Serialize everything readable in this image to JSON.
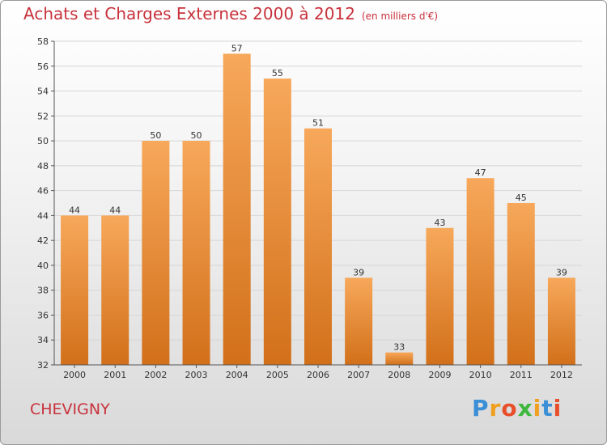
{
  "header": {
    "title": "Achats et Charges Externes 2000 à 2012",
    "unit": "(en milliers d'€)"
  },
  "footer": {
    "commune": "CHEVIGNY",
    "logo": [
      "P",
      "r",
      "o",
      "x",
      "i",
      "t",
      "i"
    ],
    "logo_colors": [
      "#3a8fd6",
      "#f0a020",
      "#e84e2a",
      "#3db83d",
      "#f0a020",
      "#3a8fd6",
      "#e84e2a"
    ]
  },
  "chart_data": {
    "type": "bar",
    "title": "Achats et Charges Externes 2000 à 2012",
    "xlabel": "",
    "ylabel": "",
    "categories": [
      "2000",
      "2001",
      "2002",
      "2003",
      "2004",
      "2005",
      "2006",
      "2007",
      "2008",
      "2009",
      "2010",
      "2011",
      "2012"
    ],
    "values": [
      44,
      44,
      50,
      50,
      57,
      55,
      51,
      39,
      33,
      43,
      47,
      45,
      39
    ],
    "ylim": [
      32,
      58
    ],
    "yticks": [
      32,
      34,
      36,
      38,
      40,
      42,
      44,
      46,
      48,
      50,
      52,
      54,
      56,
      58
    ],
    "grid": true,
    "bar_color_top": "#f7a85a",
    "bar_color_bottom": "#d2701a"
  }
}
